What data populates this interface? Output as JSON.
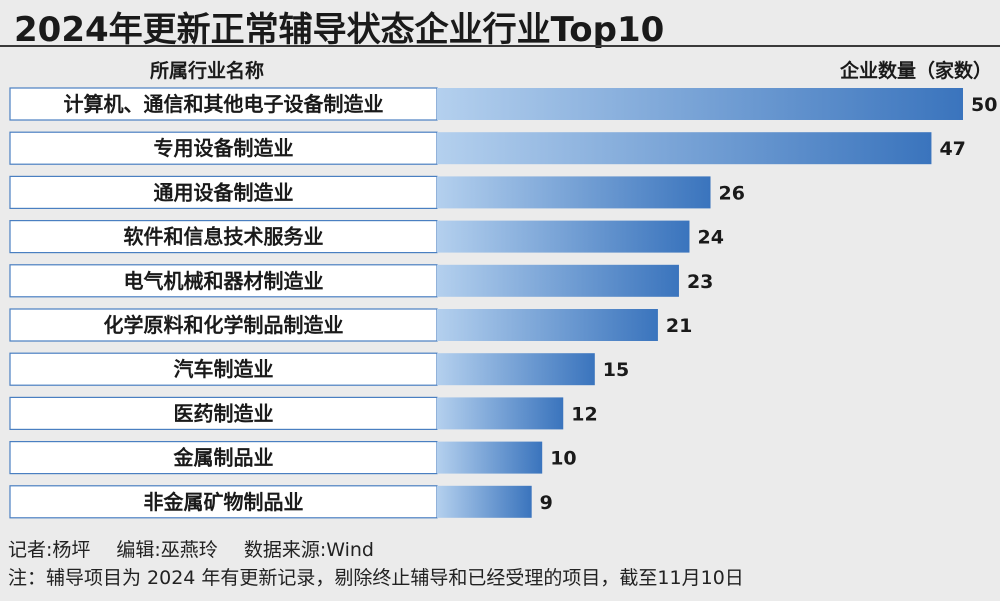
{
  "header": {
    "title": "2024年更新正常辅导状态企业行业Top10",
    "col_left": "所属行业名称",
    "col_right": "企业数量（家数）"
  },
  "chart_data": {
    "type": "bar",
    "orientation": "horizontal",
    "title": "2024年更新正常辅导状态企业行业Top10",
    "categories": [
      "计算机、通信和其他电子设备制造业",
      "专用设备制造业",
      "通用设备制造业",
      "软件和信息技术服务业",
      "电气机械和器材制造业",
      "化学原料和化学制品制造业",
      "汽车制造业",
      "医药制造业",
      "金属制品业",
      "非金属矿物制品业"
    ],
    "values": [
      50,
      47,
      26,
      24,
      23,
      21,
      15,
      12,
      10,
      9
    ],
    "value_labels": [
      "50",
      "47",
      "26",
      "24",
      "23",
      "21",
      "15",
      "12",
      "10",
      "9"
    ],
    "xlim": [
      0,
      50
    ],
    "grid": false,
    "colors": {
      "bar_light": "#a9c8ea",
      "bar_dark": "#3a74bd",
      "label_box": "#ffffff",
      "label_border": "#4a7fc1"
    }
  },
  "footer": {
    "reporter": "记者:杨坪",
    "editor": "编辑:巫燕玲",
    "source": "数据来源:Wind",
    "note": "注：辅导项目为 2024 年有更新记录，剔除终止辅导和已经受理的项目，截至11月10日"
  }
}
